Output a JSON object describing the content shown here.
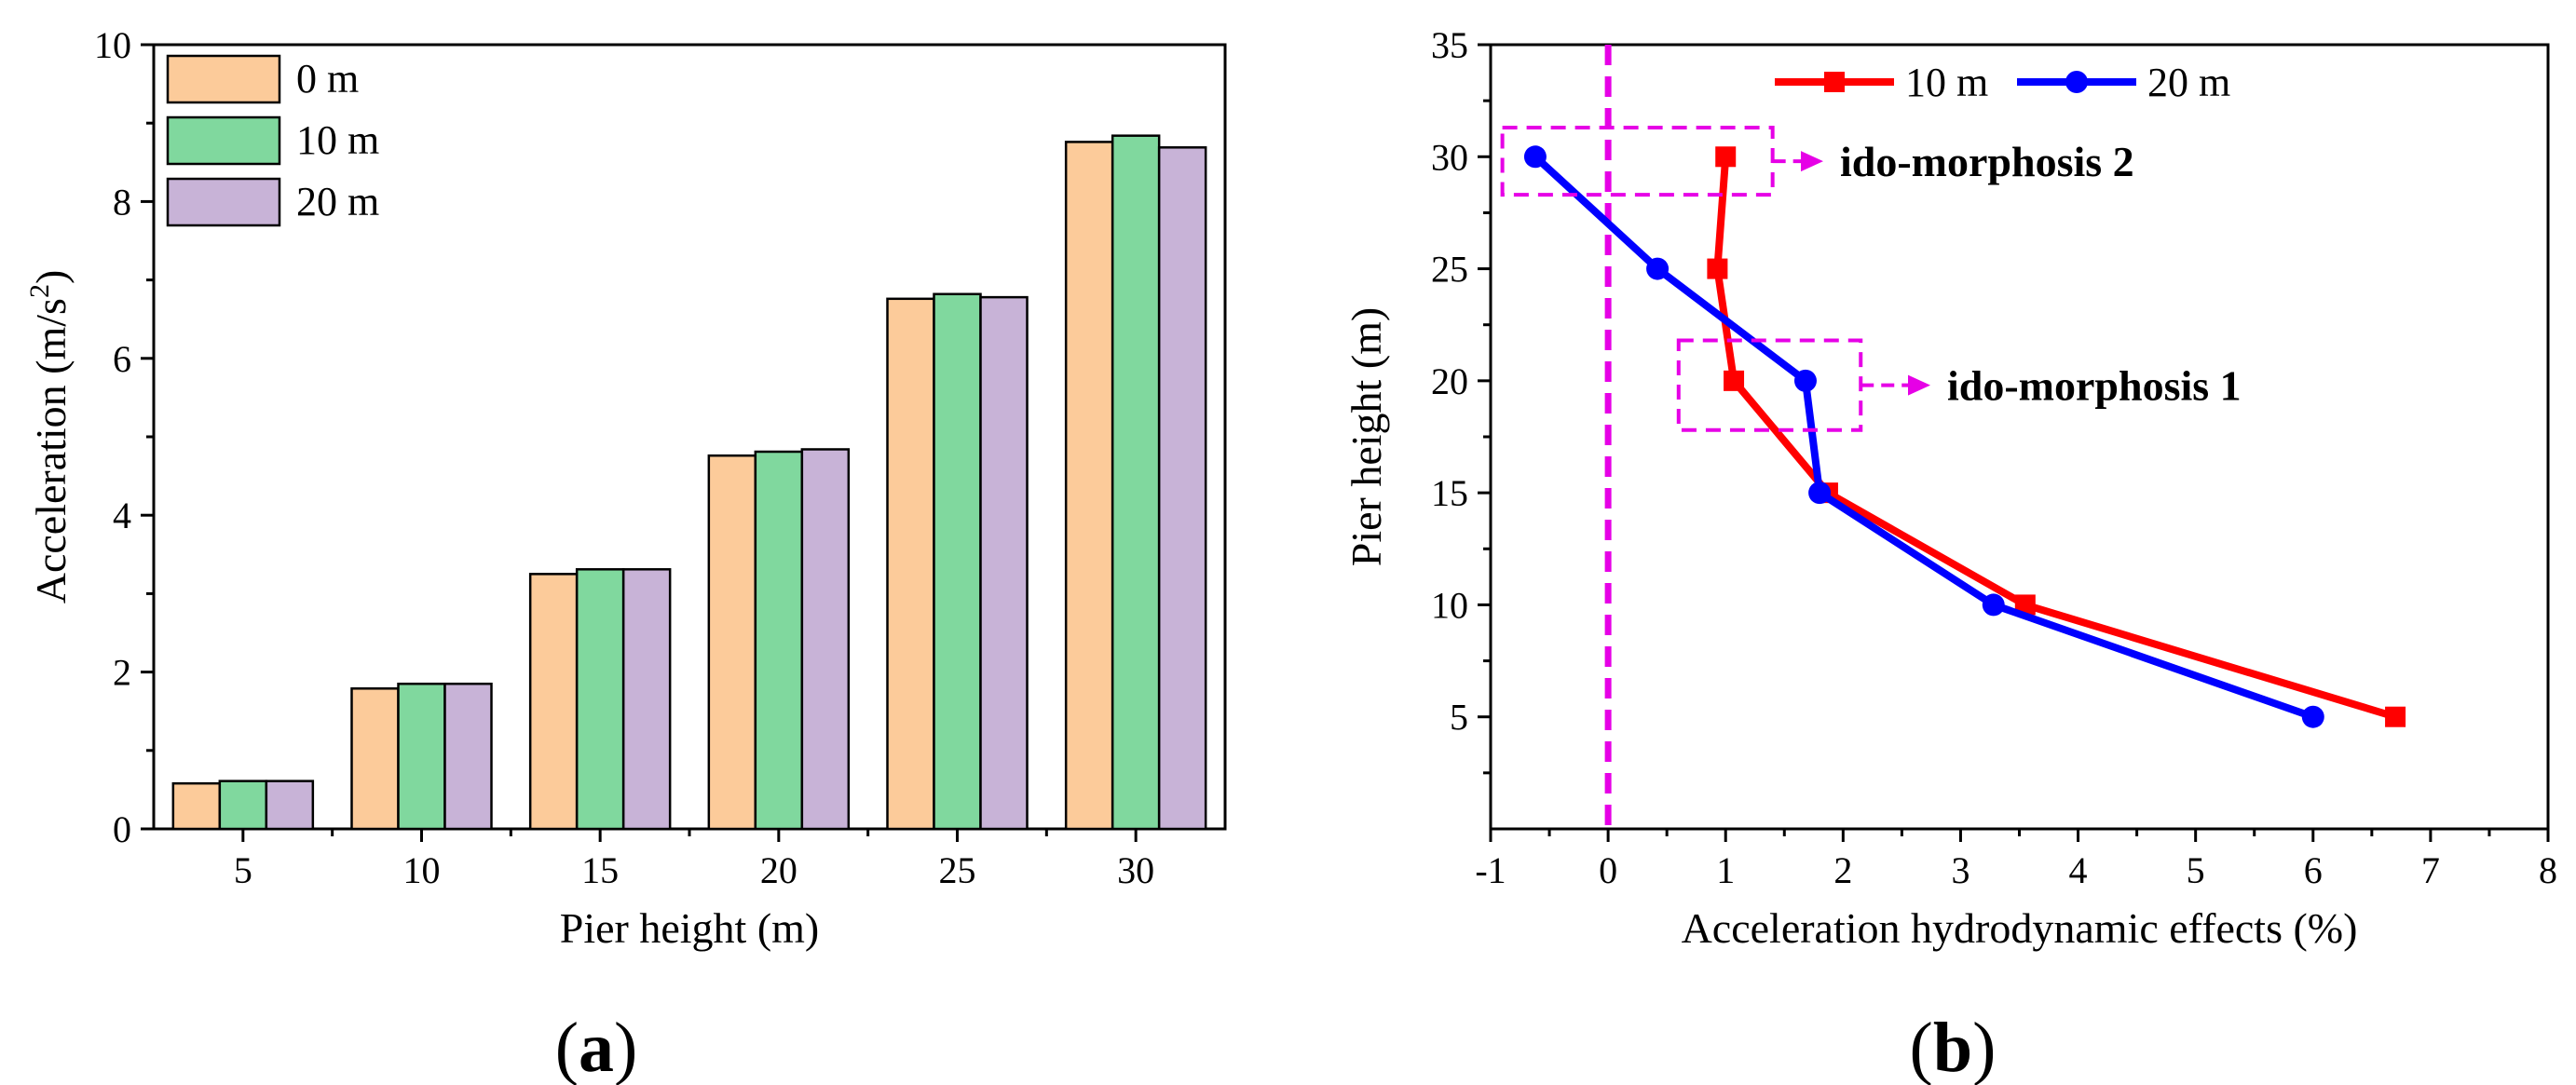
{
  "chart_data": [
    {
      "type": "bar",
      "title": "",
      "xlabel": "Pier height (m)",
      "ylabel_prefix": "Acceleration (m/s",
      "ylabel_sup": "2",
      "ylabel_suffix": ")",
      "ylim": [
        0,
        10
      ],
      "yticks": [
        "0",
        "2",
        "4",
        "6",
        "8",
        "10"
      ],
      "categories": [
        "5",
        "10",
        "15",
        "20",
        "25",
        "30"
      ],
      "legend_position": "top-left",
      "series": [
        {
          "name": "0 m",
          "color": "#FCCB9A",
          "values": [
            0.58,
            1.79,
            3.25,
            4.76,
            6.76,
            8.76
          ]
        },
        {
          "name": "10 m",
          "color": "#80D89E",
          "values": [
            0.61,
            1.85,
            3.31,
            4.81,
            6.82,
            8.84
          ]
        },
        {
          "name": "20 m",
          "color": "#C8B3D7",
          "values": [
            0.61,
            1.85,
            3.31,
            4.84,
            6.78,
            8.69
          ]
        }
      ],
      "panel_label": "a"
    },
    {
      "type": "line",
      "title": "",
      "xlabel": "Acceleration hydrodynamic effects (%)",
      "ylabel": "Pier height (m)",
      "xlim": [
        -1,
        8
      ],
      "ylim": [
        0,
        35
      ],
      "xticks": [
        "-1",
        "0",
        "1",
        "2",
        "3",
        "4",
        "5",
        "6",
        "7",
        "8"
      ],
      "yticks": [
        "5",
        "10",
        "15",
        "20",
        "25",
        "30",
        "35"
      ],
      "reference_line_x": 0,
      "reference_color": "#E600E6",
      "legend_position": "top-right",
      "series": [
        {
          "name": "10 m",
          "color": "#FF0000",
          "marker": "square",
          "points": [
            [
              6.7,
              5
            ],
            [
              3.55,
              10
            ],
            [
              1.87,
              15
            ],
            [
              1.07,
              20
            ],
            [
              0.93,
              25
            ],
            [
              1.0,
              30
            ]
          ]
        },
        {
          "name": "20 m",
          "color": "#0000FF",
          "marker": "circle",
          "points": [
            [
              6.0,
              5
            ],
            [
              3.28,
              10
            ],
            [
              1.8,
              15
            ],
            [
              1.68,
              20
            ],
            [
              0.42,
              25
            ],
            [
              -0.62,
              30
            ]
          ]
        }
      ],
      "annotations": [
        {
          "text": "ido-morphosis 2",
          "target_x_range": [
            -0.9,
            1.4
          ],
          "target_y_range": [
            28.3,
            31.3
          ]
        },
        {
          "text": "ido-morphosis 1",
          "target_x_range": [
            0.6,
            2.15
          ],
          "target_y_range": [
            17.8,
            21.8
          ]
        }
      ],
      "panel_label": "b"
    }
  ]
}
